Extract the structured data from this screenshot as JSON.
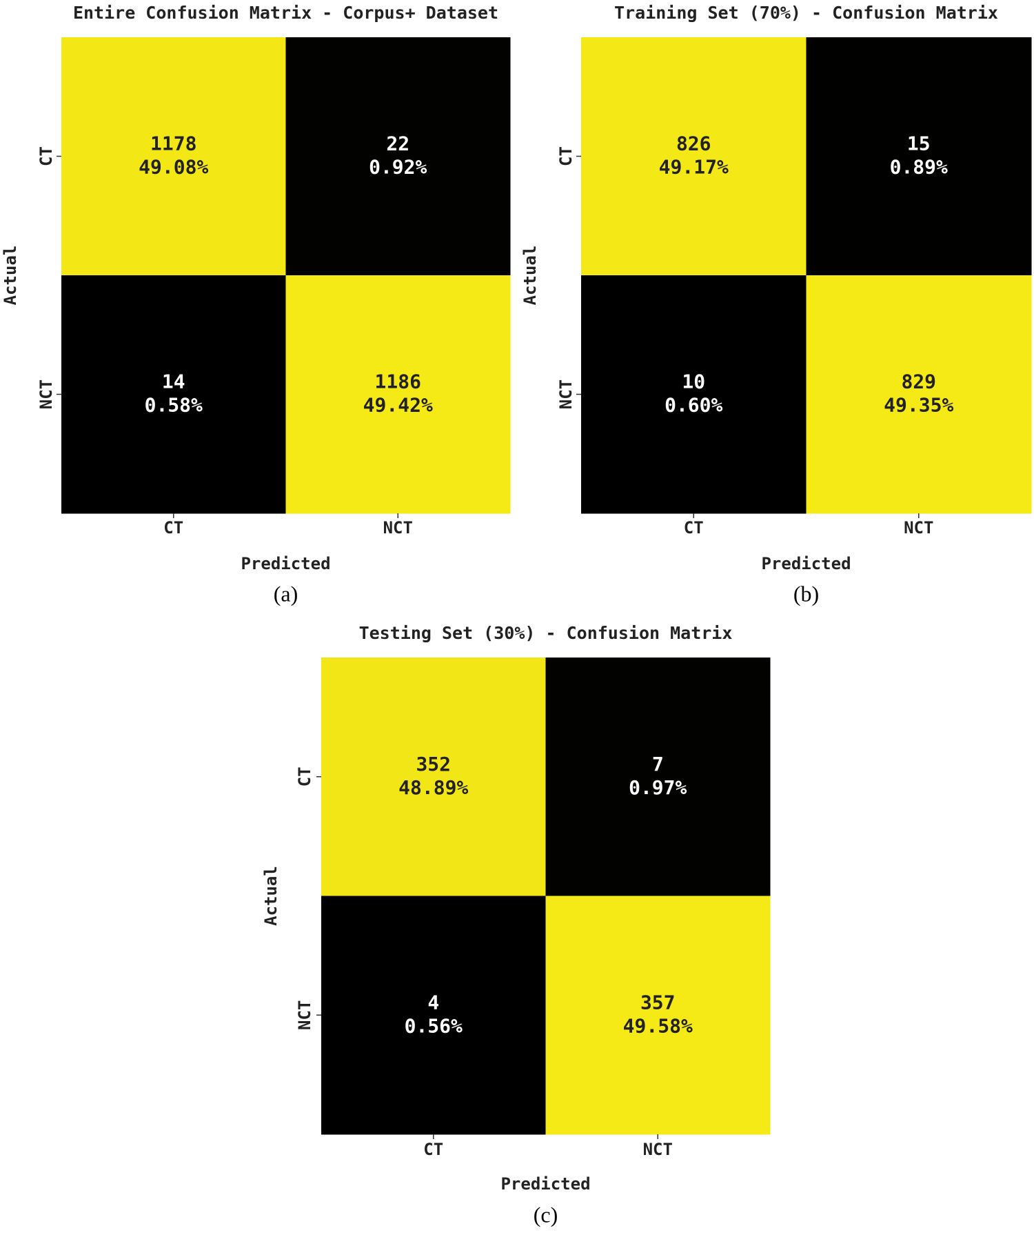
{
  "chart_data": [
    {
      "type": "heatmap",
      "title": "Entire Confusion Matrix - Corpus+ Dataset",
      "caption": "(a)",
      "xlabel": "Predicted",
      "ylabel": "Actual",
      "x_categories": [
        "CT",
        "NCT"
      ],
      "y_categories": [
        "CT",
        "NCT"
      ],
      "values": [
        [
          1178,
          22
        ],
        [
          14,
          1186
        ]
      ],
      "percent_labels": [
        [
          "49.08%",
          "0.92%"
        ],
        [
          "0.58%",
          "49.42%"
        ]
      ],
      "colors": [
        "#000000",
        "#f5e916"
      ]
    },
    {
      "type": "heatmap",
      "title": "Training Set (70%) - Confusion Matrix",
      "caption": "(b)",
      "xlabel": "Predicted",
      "ylabel": "Actual",
      "x_categories": [
        "CT",
        "NCT"
      ],
      "y_categories": [
        "CT",
        "NCT"
      ],
      "values": [
        [
          826,
          15
        ],
        [
          10,
          829
        ]
      ],
      "percent_labels": [
        [
          "49.17%",
          "0.89%"
        ],
        [
          "0.60%",
          "49.35%"
        ]
      ],
      "colors": [
        "#000000",
        "#f5e916"
      ]
    },
    {
      "type": "heatmap",
      "title": "Testing Set (30%) - Confusion Matrix",
      "caption": "(c)",
      "xlabel": "Predicted",
      "ylabel": "Actual",
      "x_categories": [
        "CT",
        "NCT"
      ],
      "y_categories": [
        "CT",
        "NCT"
      ],
      "values": [
        [
          352,
          7
        ],
        [
          4,
          357
        ]
      ],
      "percent_labels": [
        [
          "48.89%",
          "0.97%"
        ],
        [
          "0.56%",
          "49.58%"
        ]
      ],
      "colors": [
        "#000000",
        "#f5e916"
      ]
    }
  ]
}
